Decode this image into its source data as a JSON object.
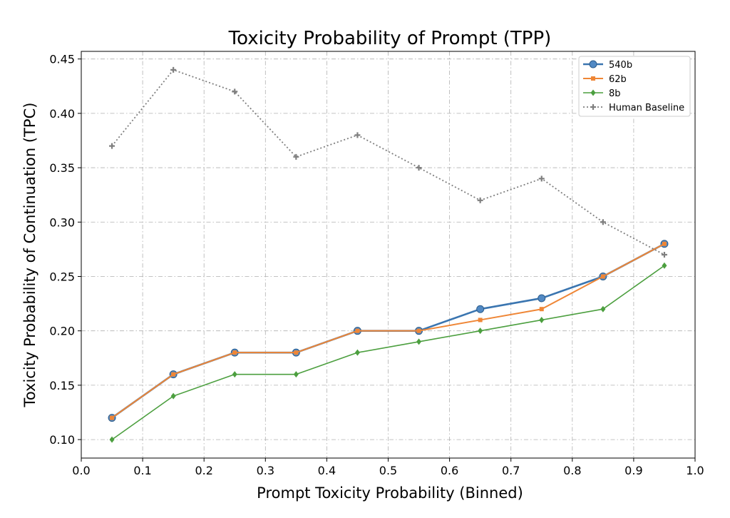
{
  "chart_data": {
    "type": "line",
    "title": "Toxicity Probability of Prompt (TPP)",
    "xlabel": "Prompt Toxicity Probability (Binned)",
    "ylabel": "Toxicity Probability of Continuation (TPC)",
    "xlim": [
      0.0,
      1.0
    ],
    "ylim": [
      0.083,
      0.457
    ],
    "xticks": [
      "0.0",
      "0.1",
      "0.2",
      "0.3",
      "0.4",
      "0.5",
      "0.6",
      "0.7",
      "0.8",
      "0.9",
      "1.0"
    ],
    "yticks": [
      "0.10",
      "0.15",
      "0.20",
      "0.25",
      "0.30",
      "0.35",
      "0.40",
      "0.45"
    ],
    "grid": true,
    "legend_position": "top-right",
    "x": [
      0.05,
      0.15,
      0.25,
      0.35,
      0.45,
      0.55,
      0.65,
      0.75,
      0.85,
      0.95
    ],
    "series": [
      {
        "name": "540b",
        "color": "#3a75b0",
        "marker": "circle",
        "linestyle": "solid",
        "values": [
          0.12,
          0.16,
          0.18,
          0.18,
          0.2,
          0.2,
          0.22,
          0.23,
          0.25,
          0.28
        ]
      },
      {
        "name": "62b",
        "color": "#ef8636",
        "marker": "square",
        "linestyle": "solid",
        "values": [
          0.12,
          0.16,
          0.18,
          0.18,
          0.2,
          0.2,
          0.21,
          0.22,
          0.25,
          0.28
        ]
      },
      {
        "name": "8b",
        "color": "#4c9f3f",
        "marker": "diamond",
        "linestyle": "solid",
        "values": [
          0.1,
          0.14,
          0.16,
          0.16,
          0.18,
          0.19,
          0.2,
          0.21,
          0.22,
          0.26
        ]
      },
      {
        "name": "Human Baseline",
        "color": "#7f7f7f",
        "marker": "plus",
        "linestyle": "dotted",
        "values": [
          0.37,
          0.44,
          0.42,
          0.36,
          0.38,
          0.35,
          0.32,
          0.34,
          0.3,
          0.27
        ]
      }
    ]
  }
}
